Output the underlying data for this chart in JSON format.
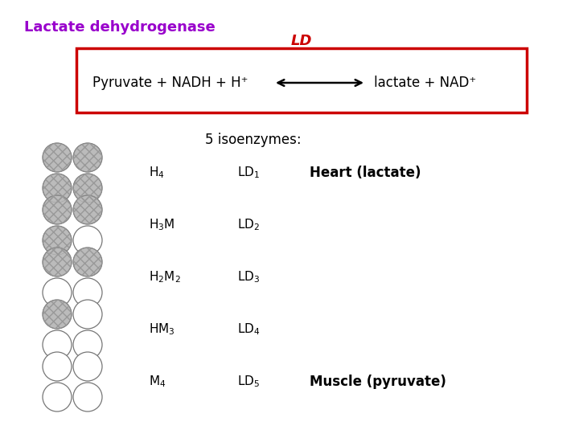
{
  "title": "Lactate dehydrogenase",
  "title_color": "#9900CC",
  "title_fontsize": 13,
  "box_color": "#CC0000",
  "ld_label": "LD",
  "reaction_left": "Pyruvate + NADH + H⁺",
  "reaction_right": "lactate + NAD⁺",
  "isoenzymes_label": "5 isoenzymes:",
  "rows": [
    {
      "label": "H$_4$",
      "ld": "LD$_1$",
      "note": "Heart (lactate)",
      "filled": [
        1,
        1,
        1,
        1
      ]
    },
    {
      "label": "H$_3$M",
      "ld": "LD$_2$",
      "note": "",
      "filled": [
        1,
        1,
        1,
        0
      ]
    },
    {
      "label": "H$_2$M$_2$",
      "ld": "LD$_3$",
      "note": "",
      "filled": [
        1,
        1,
        0,
        0
      ]
    },
    {
      "label": "HM$_3$",
      "ld": "LD$_4$",
      "note": "",
      "filled": [
        1,
        0,
        0,
        0
      ]
    },
    {
      "label": "M$_4$",
      "ld": "LD$_5$",
      "note": "Muscle (pyruvate)",
      "filled": [
        0,
        0,
        0,
        0
      ]
    }
  ],
  "filled_color": "#bbbbbb",
  "empty_color": "#ffffff",
  "edge_color": "#777777"
}
